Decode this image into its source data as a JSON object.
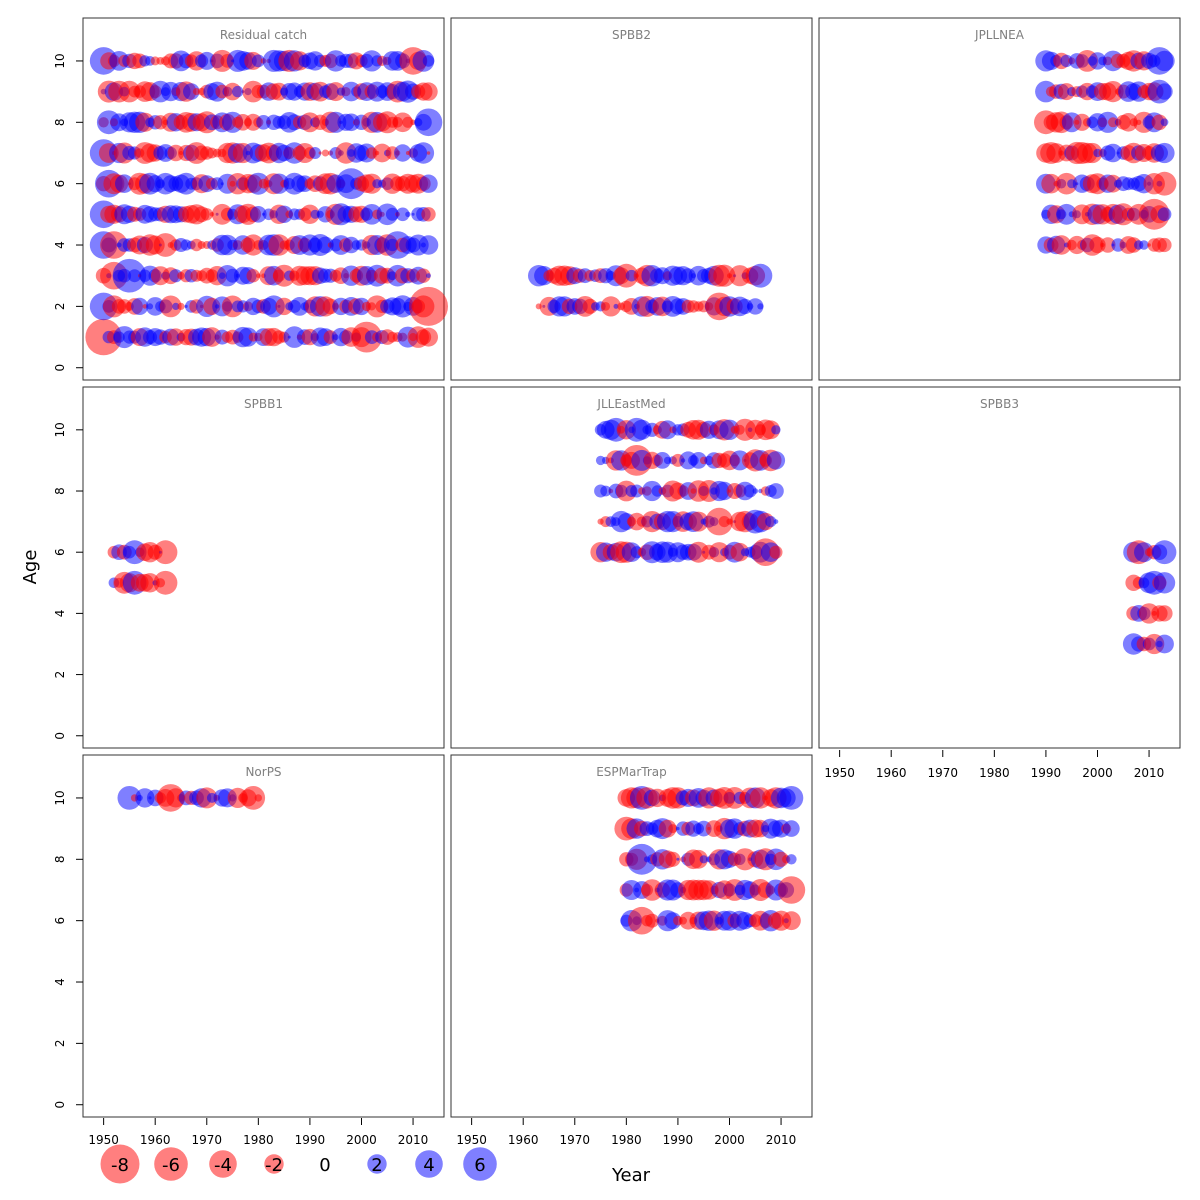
{
  "chart_data": {
    "type": "scatter",
    "xlabel": "Year",
    "ylabel": "Age",
    "xlim": [
      1946,
      2016
    ],
    "ylim": [
      -0.4,
      11.4
    ],
    "x_ticks": [
      "1950",
      "1960",
      "1970",
      "1980",
      "1990",
      "2000",
      "2010"
    ],
    "y_ticks": [
      "0",
      "2",
      "4",
      "6",
      "8",
      "10"
    ],
    "colors": {
      "negative": "#ff0000",
      "positive": "#0000ff"
    },
    "legend": {
      "values": [
        -8,
        -6,
        -4,
        -2,
        0,
        2,
        4,
        6
      ],
      "labels": [
        "-8",
        "-6",
        "-4",
        "-2",
        "0",
        "2",
        "4",
        "6"
      ]
    },
    "panels": [
      {
        "title": "Residual catch",
        "years": [
          1950,
          2013
        ],
        "ages": [
          1,
          2,
          3,
          4,
          5,
          6,
          7,
          8,
          9,
          10
        ],
        "highlights": [
          [
            1950,
            1,
            -7
          ],
          [
            1950,
            2,
            4
          ],
          [
            1952,
            3,
            -4
          ],
          [
            1955,
            3,
            6
          ],
          [
            1950,
            4,
            4
          ],
          [
            1952,
            4,
            -4
          ],
          [
            1950,
            5,
            4
          ],
          [
            1950,
            7,
            4
          ],
          [
            1950,
            10,
            4
          ],
          [
            1951,
            6,
            4
          ],
          [
            1951,
            8,
            3
          ],
          [
            1962,
            4,
            -3
          ],
          [
            1998,
            6,
            5
          ],
          [
            2013,
            2,
            -8
          ],
          [
            2010,
            10,
            -4
          ],
          [
            2001,
            1,
            -5
          ],
          [
            2007,
            4,
            4
          ],
          [
            2013,
            8,
            4
          ]
        ]
      },
      {
        "title": "SPBB2",
        "years": [
          1963,
          2006
        ],
        "ages": [
          2,
          3
        ],
        "highlights": [
          [
            1980,
            3,
            -3
          ],
          [
            1998,
            2,
            -4
          ],
          [
            2006,
            3,
            3
          ]
        ]
      },
      {
        "title": "JPLLNEA",
        "years": [
          1990,
          2013
        ],
        "ages": [
          4,
          5,
          6,
          7,
          8,
          9,
          10
        ],
        "highlights": [
          [
            2012,
            10,
            4
          ],
          [
            2011,
            5,
            -5
          ],
          [
            2012,
            9,
            3
          ],
          [
            2013,
            6,
            -3
          ],
          [
            1990,
            8,
            -3
          ]
        ]
      },
      {
        "title": "SPBB1",
        "years": [
          1952,
          1962
        ],
        "ages": [
          5,
          6
        ],
        "highlights": [
          [
            1956,
            6,
            3
          ],
          [
            1962,
            6,
            -3
          ],
          [
            1962,
            5,
            -3
          ],
          [
            1956,
            5,
            3
          ]
        ]
      },
      {
        "title": "JLLEastMed",
        "years": [
          1975,
          2009
        ],
        "ages": [
          6,
          7,
          8,
          9,
          10
        ],
        "highlights": [
          [
            1982,
            9,
            -5
          ],
          [
            1982,
            10,
            3
          ],
          [
            1978,
            10,
            3
          ],
          [
            1998,
            7,
            -4
          ],
          [
            2007,
            6,
            -4
          ],
          [
            2005,
            7,
            3
          ]
        ]
      },
      {
        "title": "SPBB3",
        "years": [
          2007,
          2013
        ],
        "ages": [
          3,
          4,
          5,
          6
        ],
        "highlights": [
          [
            2013,
            6,
            3
          ],
          [
            2008,
            6,
            -3
          ],
          [
            2011,
            5,
            3
          ]
        ]
      },
      {
        "title": "NorPS",
        "years": [
          1955,
          1980
        ],
        "ages": [
          10
        ],
        "highlights": [
          [
            1963,
            10,
            -4
          ],
          [
            1979,
            10,
            -3
          ],
          [
            1955,
            10,
            3
          ]
        ]
      },
      {
        "title": "ESPMarTrap",
        "years": [
          1980,
          2012
        ],
        "ages": [
          6,
          7,
          8,
          9,
          10
        ],
        "highlights": [
          [
            1983,
            8,
            5
          ],
          [
            1983,
            6,
            -4
          ],
          [
            2012,
            7,
            -4
          ],
          [
            1980,
            9,
            -3
          ],
          [
            1983,
            10,
            3
          ],
          [
            2012,
            10,
            3
          ]
        ]
      }
    ]
  }
}
